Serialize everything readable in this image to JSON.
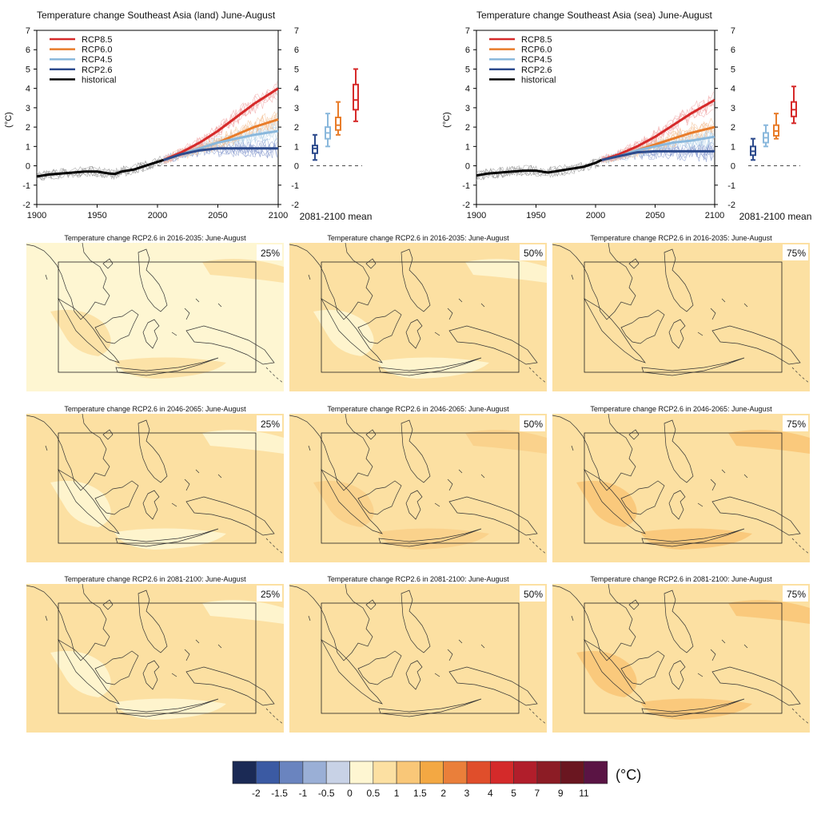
{
  "chart_data": [
    {
      "type": "line",
      "title": "Temperature change Southeast Asia (land) June-August",
      "ylabel": "(°C)",
      "xlim": [
        1900,
        2100
      ],
      "ylim": [
        -2,
        7
      ],
      "x_ticks": [
        "1900",
        "1950",
        "2000",
        "2050",
        "2100"
      ],
      "y_ticks": [
        "-2",
        "-1",
        "0",
        "1",
        "2",
        "3",
        "4",
        "5",
        "6",
        "7"
      ],
      "series": [
        {
          "name": "RCP8.5",
          "color": "#d62a2a",
          "x": [
            2005,
            2020,
            2035,
            2050,
            2065,
            2080,
            2100
          ],
          "y": [
            0.3,
            0.7,
            1.2,
            1.8,
            2.5,
            3.2,
            4.0
          ]
        },
        {
          "name": "RCP6.0",
          "color": "#e87c2a",
          "x": [
            2005,
            2020,
            2035,
            2050,
            2065,
            2080,
            2100
          ],
          "y": [
            0.3,
            0.6,
            0.9,
            1.2,
            1.6,
            2.0,
            2.4
          ]
        },
        {
          "name": "RCP4.5",
          "color": "#8ab8dc",
          "x": [
            2005,
            2020,
            2035,
            2050,
            2065,
            2080,
            2100
          ],
          "y": [
            0.3,
            0.6,
            0.9,
            1.2,
            1.4,
            1.6,
            1.8
          ]
        },
        {
          "name": "RCP2.6",
          "color": "#2c4a8c",
          "x": [
            2005,
            2020,
            2035,
            2050,
            2065,
            2080,
            2100
          ],
          "y": [
            0.3,
            0.6,
            0.8,
            0.9,
            0.9,
            0.9,
            0.9
          ]
        },
        {
          "name": "historical",
          "color": "#000000",
          "x": [
            1900,
            1910,
            1920,
            1930,
            1940,
            1950,
            1955,
            1960,
            1965,
            1970,
            1980,
            1990,
            1995,
            2000,
            2005
          ],
          "y": [
            -0.55,
            -0.45,
            -0.4,
            -0.35,
            -0.3,
            -0.3,
            -0.35,
            -0.4,
            -0.42,
            -0.3,
            -0.2,
            0.0,
            0.1,
            0.2,
            0.3
          ]
        }
      ],
      "boxes": {
        "label": "2081-2100 mean",
        "items": [
          {
            "name": "RCP2.6",
            "color": "#2c4a8c",
            "min": 0.3,
            "q1": 0.65,
            "median": 0.9,
            "q3": 1.05,
            "max": 1.6
          },
          {
            "name": "RCP4.5",
            "color": "#8ab8dc",
            "min": 1.0,
            "q1": 1.4,
            "median": 1.7,
            "q3": 2.0,
            "max": 2.7
          },
          {
            "name": "RCP6.0",
            "color": "#e87c2a",
            "min": 1.6,
            "q1": 1.85,
            "median": 2.1,
            "q3": 2.5,
            "max": 3.3
          },
          {
            "name": "RCP8.5",
            "color": "#d62a2a",
            "min": 2.3,
            "q1": 2.9,
            "median": 3.4,
            "q3": 4.2,
            "max": 5.0
          }
        ]
      }
    },
    {
      "type": "line",
      "title": "Temperature change Southeast Asia (sea) June-August",
      "ylabel": "(°C)",
      "xlim": [
        1900,
        2100
      ],
      "ylim": [
        -2,
        7
      ],
      "x_ticks": [
        "1900",
        "1950",
        "2000",
        "2050",
        "2100"
      ],
      "y_ticks": [
        "-2",
        "-1",
        "0",
        "1",
        "2",
        "3",
        "4",
        "5",
        "6",
        "7"
      ],
      "series": [
        {
          "name": "RCP8.5",
          "color": "#d62a2a",
          "x": [
            2005,
            2020,
            2035,
            2050,
            2065,
            2080,
            2100
          ],
          "y": [
            0.3,
            0.6,
            1.0,
            1.5,
            2.1,
            2.7,
            3.4
          ]
        },
        {
          "name": "RCP6.0",
          "color": "#e87c2a",
          "x": [
            2005,
            2020,
            2035,
            2050,
            2065,
            2080,
            2100
          ],
          "y": [
            0.3,
            0.5,
            0.8,
            1.1,
            1.4,
            1.7,
            2.0
          ]
        },
        {
          "name": "RCP4.5",
          "color": "#8ab8dc",
          "x": [
            2005,
            2020,
            2035,
            2050,
            2065,
            2080,
            2100
          ],
          "y": [
            0.3,
            0.5,
            0.8,
            1.0,
            1.2,
            1.3,
            1.5
          ]
        },
        {
          "name": "RCP2.6",
          "color": "#2c4a8c",
          "x": [
            2005,
            2020,
            2035,
            2050,
            2065,
            2080,
            2100
          ],
          "y": [
            0.3,
            0.5,
            0.7,
            0.75,
            0.75,
            0.75,
            0.75
          ]
        },
        {
          "name": "historical",
          "color": "#000000",
          "x": [
            1900,
            1910,
            1920,
            1930,
            1940,
            1950,
            1955,
            1960,
            1965,
            1970,
            1980,
            1990,
            1995,
            2000,
            2005
          ],
          "y": [
            -0.5,
            -0.4,
            -0.35,
            -0.3,
            -0.25,
            -0.25,
            -0.3,
            -0.35,
            -0.3,
            -0.25,
            -0.15,
            -0.05,
            0.05,
            0.15,
            0.3
          ]
        }
      ],
      "boxes": {
        "label": "2081-2100 mean",
        "items": [
          {
            "name": "RCP2.6",
            "color": "#2c4a8c",
            "min": 0.3,
            "q1": 0.55,
            "median": 0.75,
            "q3": 1.0,
            "max": 1.4
          },
          {
            "name": "RCP4.5",
            "color": "#8ab8dc",
            "min": 1.0,
            "q1": 1.2,
            "median": 1.45,
            "q3": 1.7,
            "max": 2.1
          },
          {
            "name": "RCP6.0",
            "color": "#e87c2a",
            "min": 1.4,
            "q1": 1.55,
            "median": 1.8,
            "q3": 2.1,
            "max": 2.7
          },
          {
            "name": "RCP8.5",
            "color": "#d62a2a",
            "min": 2.2,
            "q1": 2.55,
            "median": 2.9,
            "q3": 3.3,
            "max": 4.1
          }
        ]
      }
    },
    {
      "type": "heatmap",
      "maps": [
        {
          "title": "Temperature change RCP2.6 in 2016-2035: June-August",
          "percentile": "25%",
          "background": "#fef6d2",
          "patch": "#fce0a2"
        },
        {
          "title": "Temperature change RCP2.6 in 2016-2035: June-August",
          "percentile": "50%",
          "background": "#fce0a2",
          "patch": "#fef6d2"
        },
        {
          "title": "Temperature change RCP2.6 in 2016-2035: June-August",
          "percentile": "75%",
          "background": "#fce0a2",
          "patch": "#fce0a2"
        },
        {
          "title": "Temperature change RCP2.6 in 2046-2065: June-August",
          "percentile": "25%",
          "background": "#fce0a2",
          "patch": "#fef6d2"
        },
        {
          "title": "Temperature change RCP2.6 in 2046-2065: June-August",
          "percentile": "50%",
          "background": "#fce0a2",
          "patch": "#fad08a"
        },
        {
          "title": "Temperature change RCP2.6 in 2046-2065: June-August",
          "percentile": "75%",
          "background": "#fce0a2",
          "patch": "#f9c778"
        },
        {
          "title": "Temperature change RCP2.6 in 2081-2100: June-August",
          "percentile": "25%",
          "background": "#fce0a2",
          "patch": "#fef6d2"
        },
        {
          "title": "Temperature change RCP2.6 in 2081-2100: June-August",
          "percentile": "50%",
          "background": "#fce0a2",
          "patch": "#fce0a2"
        },
        {
          "title": "Temperature change RCP2.6 in 2081-2100: June-August",
          "percentile": "75%",
          "background": "#fce0a2",
          "patch": "#f9c778"
        }
      ]
    },
    {
      "type": "colorbar",
      "unit": "(°C)",
      "colors": [
        "#1b2a55",
        "#3b5aa3",
        "#6a84bf",
        "#9aafd6",
        "#c8d2e6",
        "#fef6d2",
        "#fce0a2",
        "#f9c778",
        "#f3a843",
        "#ea7f3a",
        "#e04e2b",
        "#d42a2a",
        "#b11e2b",
        "#8c1c25",
        "#6a1620",
        "#5a1444"
      ],
      "labels": [
        "-2",
        "-1.5",
        "-1",
        "-0.5",
        "0",
        "0.5",
        "1",
        "1.5",
        "2",
        "3",
        "4",
        "5",
        "7",
        "9",
        "11"
      ]
    }
  ]
}
